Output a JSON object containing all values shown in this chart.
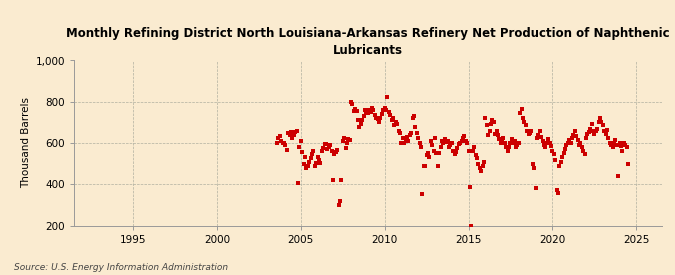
{
  "title": "Monthly Refining District North Louisiana-Arkansas Refinery Net Production of Naphthenic\nLubricants",
  "ylabel": "Thousand Barrels",
  "source": "Source: U.S. Energy Information Administration",
  "background_color": "#faebd0",
  "dot_color": "#cc0000",
  "ylim": [
    200,
    1000
  ],
  "yticks": [
    200,
    400,
    600,
    800,
    1000
  ],
  "ytick_labels": [
    "200",
    "400",
    "600",
    "800",
    "1,000"
  ],
  "xlim_start": 1991.5,
  "xlim_end": 2026.5,
  "xticks": [
    1995,
    2000,
    2005,
    2010,
    2015,
    2020,
    2025
  ],
  "scatter_data": [
    [
      2003.583,
      600
    ],
    [
      2003.667,
      625
    ],
    [
      2003.75,
      635
    ],
    [
      2003.833,
      610
    ],
    [
      2003.917,
      600
    ],
    [
      2004.0,
      600
    ],
    [
      2004.083,
      590
    ],
    [
      2004.167,
      565
    ],
    [
      2004.25,
      650
    ],
    [
      2004.333,
      640
    ],
    [
      2004.417,
      655
    ],
    [
      2004.5,
      625
    ],
    [
      2004.583,
      640
    ],
    [
      2004.667,
      655
    ],
    [
      2004.75,
      660
    ],
    [
      2004.833,
      405
    ],
    [
      2004.917,
      580
    ],
    [
      2005.0,
      610
    ],
    [
      2005.083,
      555
    ],
    [
      2005.167,
      500
    ],
    [
      2005.25,
      530
    ],
    [
      2005.333,
      480
    ],
    [
      2005.417,
      490
    ],
    [
      2005.5,
      510
    ],
    [
      2005.583,
      525
    ],
    [
      2005.667,
      545
    ],
    [
      2005.75,
      560
    ],
    [
      2005.833,
      490
    ],
    [
      2005.917,
      505
    ],
    [
      2006.0,
      530
    ],
    [
      2006.083,
      520
    ],
    [
      2006.167,
      505
    ],
    [
      2006.25,
      560
    ],
    [
      2006.333,
      575
    ],
    [
      2006.417,
      595
    ],
    [
      2006.5,
      595
    ],
    [
      2006.583,
      570
    ],
    [
      2006.667,
      580
    ],
    [
      2006.75,
      590
    ],
    [
      2006.833,
      560
    ],
    [
      2006.917,
      420
    ],
    [
      2007.0,
      545
    ],
    [
      2007.083,
      555
    ],
    [
      2007.167,
      565
    ],
    [
      2007.25,
      300
    ],
    [
      2007.333,
      320
    ],
    [
      2007.417,
      420
    ],
    [
      2007.5,
      610
    ],
    [
      2007.583,
      625
    ],
    [
      2007.667,
      575
    ],
    [
      2007.75,
      600
    ],
    [
      2007.833,
      620
    ],
    [
      2007.917,
      615
    ],
    [
      2008.0,
      800
    ],
    [
      2008.083,
      790
    ],
    [
      2008.167,
      755
    ],
    [
      2008.25,
      765
    ],
    [
      2008.333,
      755
    ],
    [
      2008.417,
      710
    ],
    [
      2008.5,
      680
    ],
    [
      2008.583,
      690
    ],
    [
      2008.667,
      710
    ],
    [
      2008.75,
      730
    ],
    [
      2008.833,
      760
    ],
    [
      2008.917,
      750
    ],
    [
      2009.0,
      745
    ],
    [
      2009.083,
      760
    ],
    [
      2009.167,
      750
    ],
    [
      2009.25,
      770
    ],
    [
      2009.333,
      760
    ],
    [
      2009.417,
      735
    ],
    [
      2009.5,
      720
    ],
    [
      2009.583,
      715
    ],
    [
      2009.667,
      700
    ],
    [
      2009.75,
      720
    ],
    [
      2009.833,
      740
    ],
    [
      2009.917,
      760
    ],
    [
      2010.0,
      770
    ],
    [
      2010.083,
      760
    ],
    [
      2010.167,
      825
    ],
    [
      2010.25,
      750
    ],
    [
      2010.333,
      735
    ],
    [
      2010.417,
      710
    ],
    [
      2010.5,
      720
    ],
    [
      2010.583,
      685
    ],
    [
      2010.667,
      700
    ],
    [
      2010.75,
      690
    ],
    [
      2010.833,
      660
    ],
    [
      2010.917,
      650
    ],
    [
      2011.0,
      600
    ],
    [
      2011.083,
      625
    ],
    [
      2011.167,
      600
    ],
    [
      2011.25,
      610
    ],
    [
      2011.333,
      630
    ],
    [
      2011.417,
      610
    ],
    [
      2011.5,
      640
    ],
    [
      2011.583,
      650
    ],
    [
      2011.667,
      720
    ],
    [
      2011.75,
      730
    ],
    [
      2011.833,
      680
    ],
    [
      2011.917,
      650
    ],
    [
      2012.0,
      625
    ],
    [
      2012.083,
      600
    ],
    [
      2012.167,
      580
    ],
    [
      2012.25,
      355
    ],
    [
      2012.333,
      490
    ],
    [
      2012.417,
      490
    ],
    [
      2012.5,
      540
    ],
    [
      2012.583,
      550
    ],
    [
      2012.667,
      530
    ],
    [
      2012.75,
      610
    ],
    [
      2012.833,
      590
    ],
    [
      2012.917,
      560
    ],
    [
      2013.0,
      625
    ],
    [
      2013.083,
      550
    ],
    [
      2013.167,
      490
    ],
    [
      2013.25,
      550
    ],
    [
      2013.333,
      580
    ],
    [
      2013.417,
      610
    ],
    [
      2013.5,
      600
    ],
    [
      2013.583,
      620
    ],
    [
      2013.667,
      605
    ],
    [
      2013.75,
      610
    ],
    [
      2013.833,
      580
    ],
    [
      2013.917,
      590
    ],
    [
      2014.0,
      600
    ],
    [
      2014.083,
      560
    ],
    [
      2014.167,
      545
    ],
    [
      2014.25,
      555
    ],
    [
      2014.333,
      575
    ],
    [
      2014.417,
      595
    ],
    [
      2014.5,
      600
    ],
    [
      2014.583,
      610
    ],
    [
      2014.667,
      625
    ],
    [
      2014.75,
      635
    ],
    [
      2014.833,
      610
    ],
    [
      2014.917,
      600
    ],
    [
      2015.0,
      560
    ],
    [
      2015.083,
      385
    ],
    [
      2015.167,
      200
    ],
    [
      2015.25,
      560
    ],
    [
      2015.333,
      580
    ],
    [
      2015.417,
      540
    ],
    [
      2015.5,
      525
    ],
    [
      2015.583,
      500
    ],
    [
      2015.667,
      480
    ],
    [
      2015.75,
      465
    ],
    [
      2015.833,
      490
    ],
    [
      2015.917,
      510
    ],
    [
      2016.0,
      720
    ],
    [
      2016.083,
      685
    ],
    [
      2016.167,
      640
    ],
    [
      2016.25,
      660
    ],
    [
      2016.333,
      690
    ],
    [
      2016.417,
      710
    ],
    [
      2016.5,
      700
    ],
    [
      2016.583,
      645
    ],
    [
      2016.667,
      660
    ],
    [
      2016.75,
      640
    ],
    [
      2016.833,
      620
    ],
    [
      2016.917,
      600
    ],
    [
      2017.0,
      610
    ],
    [
      2017.083,
      625
    ],
    [
      2017.167,
      600
    ],
    [
      2017.25,
      580
    ],
    [
      2017.333,
      560
    ],
    [
      2017.417,
      580
    ],
    [
      2017.5,
      600
    ],
    [
      2017.583,
      620
    ],
    [
      2017.667,
      600
    ],
    [
      2017.75,
      610
    ],
    [
      2017.833,
      580
    ],
    [
      2017.917,
      590
    ],
    [
      2018.0,
      600
    ],
    [
      2018.083,
      745
    ],
    [
      2018.167,
      765
    ],
    [
      2018.25,
      720
    ],
    [
      2018.333,
      700
    ],
    [
      2018.417,
      685
    ],
    [
      2018.5,
      660
    ],
    [
      2018.583,
      645
    ],
    [
      2018.667,
      650
    ],
    [
      2018.75,
      660
    ],
    [
      2018.833,
      500
    ],
    [
      2018.917,
      480
    ],
    [
      2019.0,
      380
    ],
    [
      2019.083,
      625
    ],
    [
      2019.167,
      640
    ],
    [
      2019.25,
      660
    ],
    [
      2019.333,
      630
    ],
    [
      2019.417,
      610
    ],
    [
      2019.5,
      590
    ],
    [
      2019.583,
      580
    ],
    [
      2019.667,
      600
    ],
    [
      2019.75,
      620
    ],
    [
      2019.833,
      600
    ],
    [
      2019.917,
      585
    ],
    [
      2020.0,
      560
    ],
    [
      2020.083,
      545
    ],
    [
      2020.167,
      520
    ],
    [
      2020.25,
      370
    ],
    [
      2020.333,
      360
    ],
    [
      2020.417,
      490
    ],
    [
      2020.5,
      510
    ],
    [
      2020.583,
      530
    ],
    [
      2020.667,
      550
    ],
    [
      2020.75,
      570
    ],
    [
      2020.833,
      590
    ],
    [
      2020.917,
      600
    ],
    [
      2021.0,
      615
    ],
    [
      2021.083,
      600
    ],
    [
      2021.167,
      625
    ],
    [
      2021.25,
      640
    ],
    [
      2021.333,
      660
    ],
    [
      2021.417,
      635
    ],
    [
      2021.5,
      615
    ],
    [
      2021.583,
      590
    ],
    [
      2021.667,
      600
    ],
    [
      2021.75,
      580
    ],
    [
      2021.833,
      560
    ],
    [
      2021.917,
      545
    ],
    [
      2022.0,
      625
    ],
    [
      2022.083,
      645
    ],
    [
      2022.167,
      655
    ],
    [
      2022.25,
      670
    ],
    [
      2022.333,
      690
    ],
    [
      2022.417,
      660
    ],
    [
      2022.5,
      645
    ],
    [
      2022.583,
      660
    ],
    [
      2022.667,
      670
    ],
    [
      2022.75,
      700
    ],
    [
      2022.833,
      720
    ],
    [
      2022.917,
      700
    ],
    [
      2023.0,
      685
    ],
    [
      2023.083,
      660
    ],
    [
      2023.167,
      645
    ],
    [
      2023.25,
      665
    ],
    [
      2023.333,
      625
    ],
    [
      2023.417,
      600
    ],
    [
      2023.5,
      590
    ],
    [
      2023.583,
      580
    ],
    [
      2023.667,
      600
    ],
    [
      2023.75,
      615
    ],
    [
      2023.833,
      590
    ],
    [
      2023.917,
      440
    ],
    [
      2024.0,
      600
    ],
    [
      2024.083,
      585
    ],
    [
      2024.167,
      560
    ],
    [
      2024.25,
      600
    ],
    [
      2024.333,
      590
    ],
    [
      2024.417,
      580
    ],
    [
      2024.5,
      500
    ]
  ]
}
